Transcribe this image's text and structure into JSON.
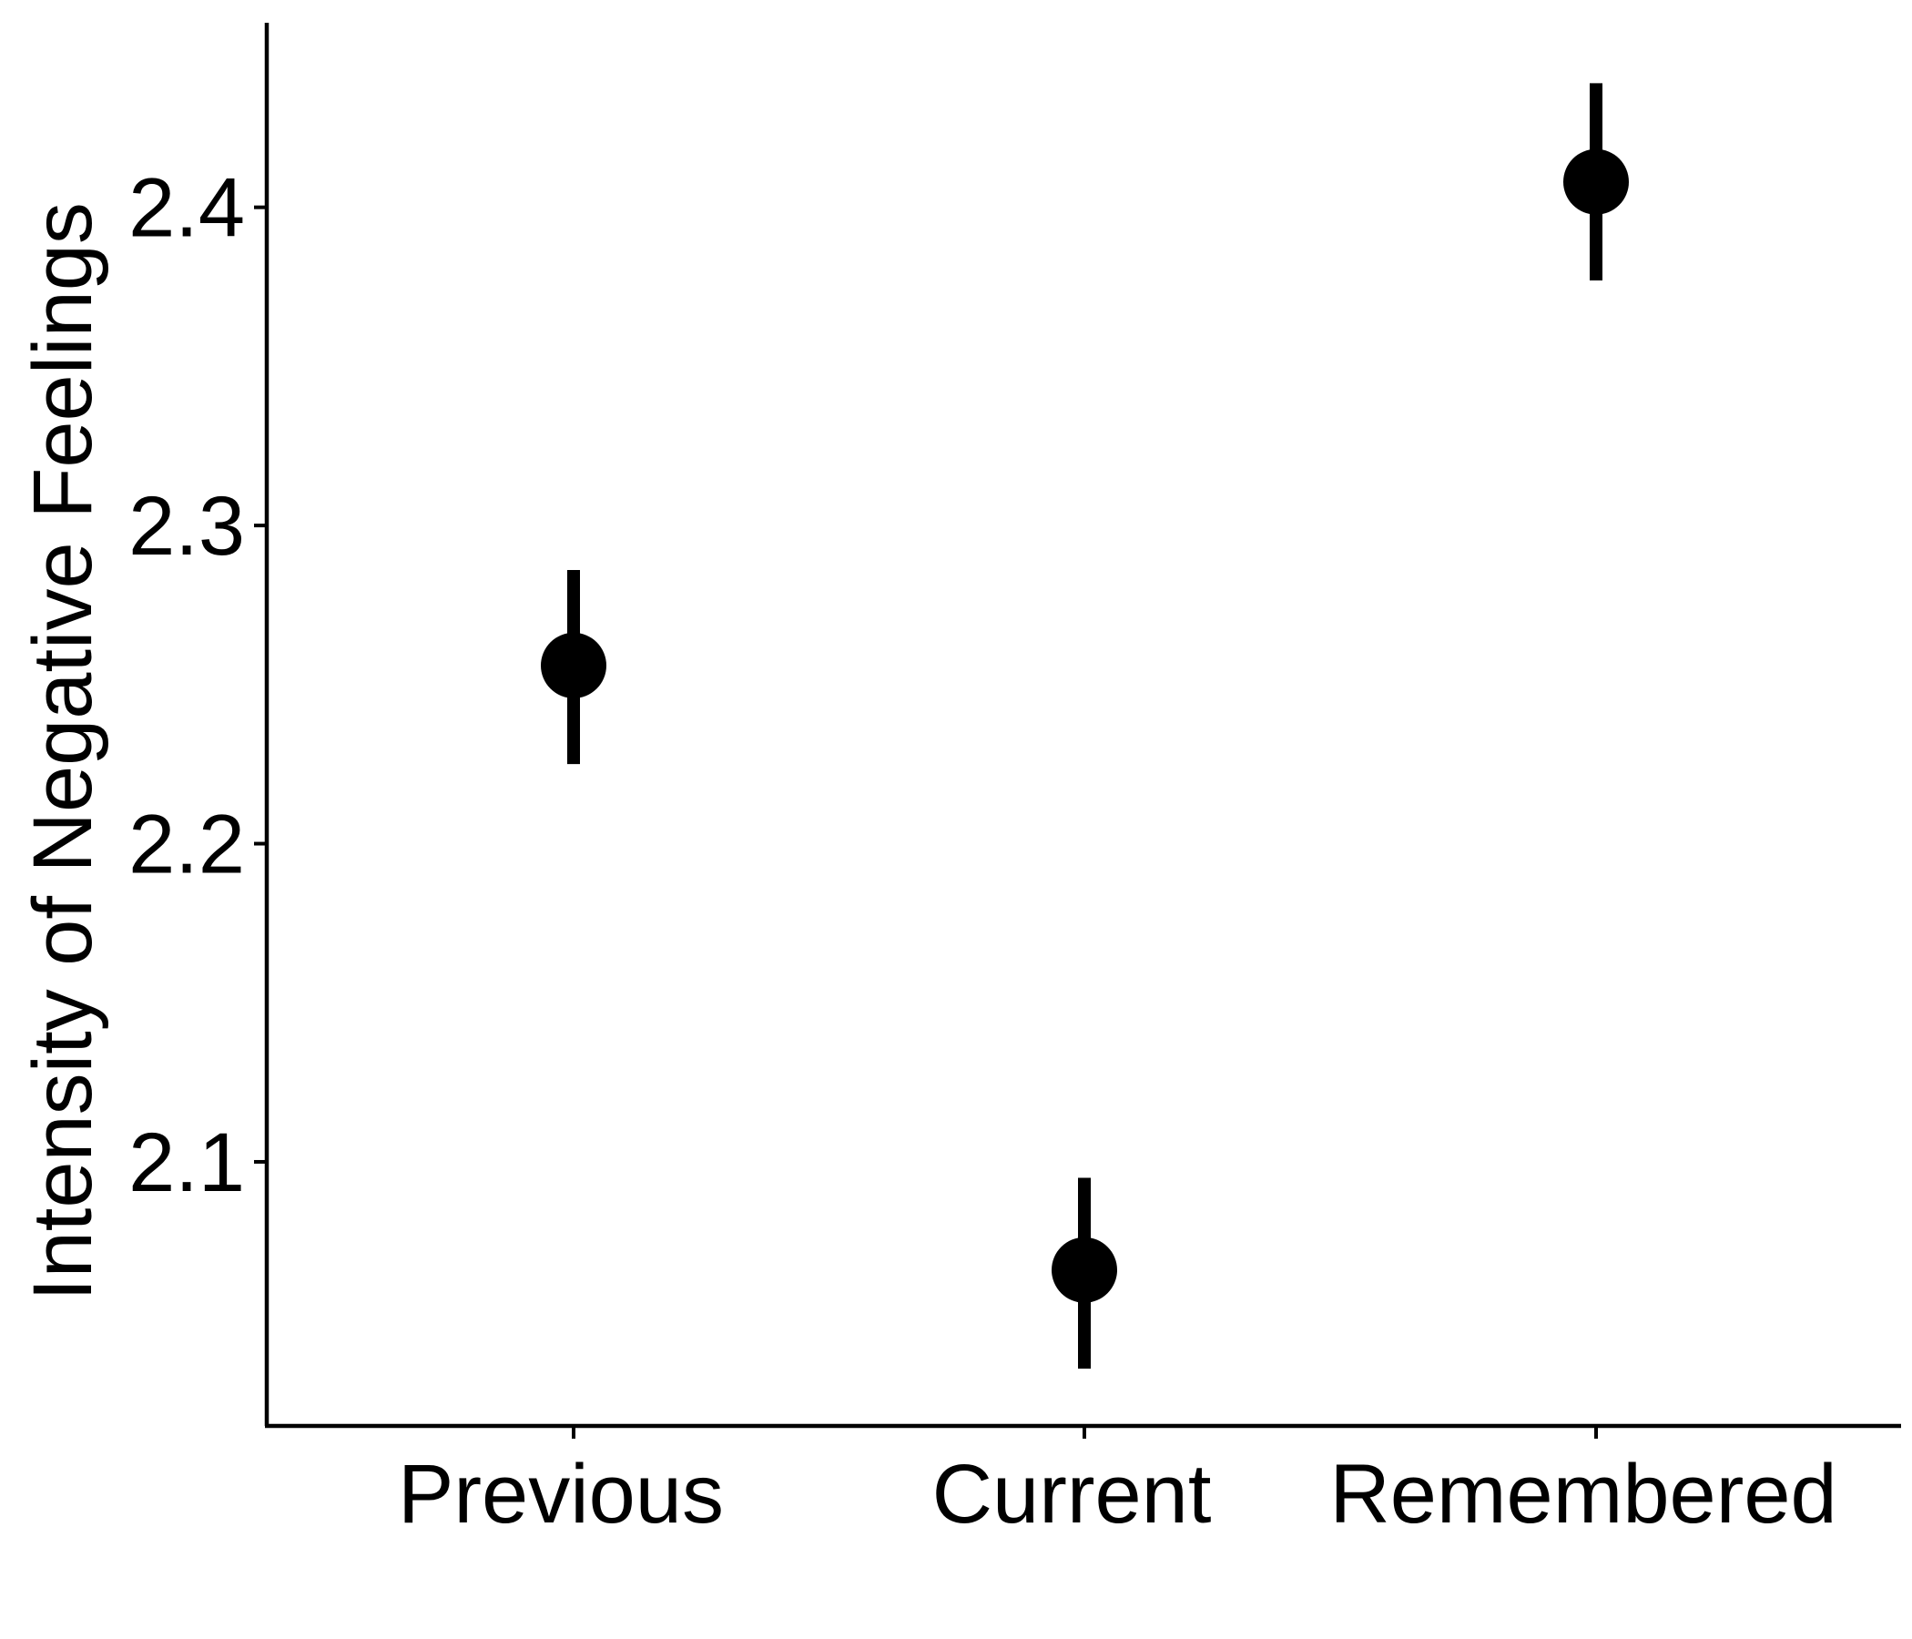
{
  "chart_data": {
    "type": "scatter",
    "categories": [
      "Previous",
      "Current",
      "Remembered"
    ],
    "series": [
      {
        "values": [
          2.256,
          2.066,
          2.408
        ],
        "error_low": [
          2.225,
          2.035,
          2.377
        ],
        "error_high": [
          2.286,
          2.095,
          2.439
        ]
      }
    ],
    "ylabel": "Intensity of Negative Feelings",
    "xlabel": "",
    "ylim": [
      2.017,
      2.458
    ],
    "yticks": [
      2.1,
      2.2,
      2.3,
      2.4
    ],
    "ytick_labels": [
      "2.1",
      "2.2",
      "2.3",
      "2.4"
    ],
    "grid": false,
    "legend": "none",
    "point_color": "#000000",
    "axis_color": "#000000"
  }
}
